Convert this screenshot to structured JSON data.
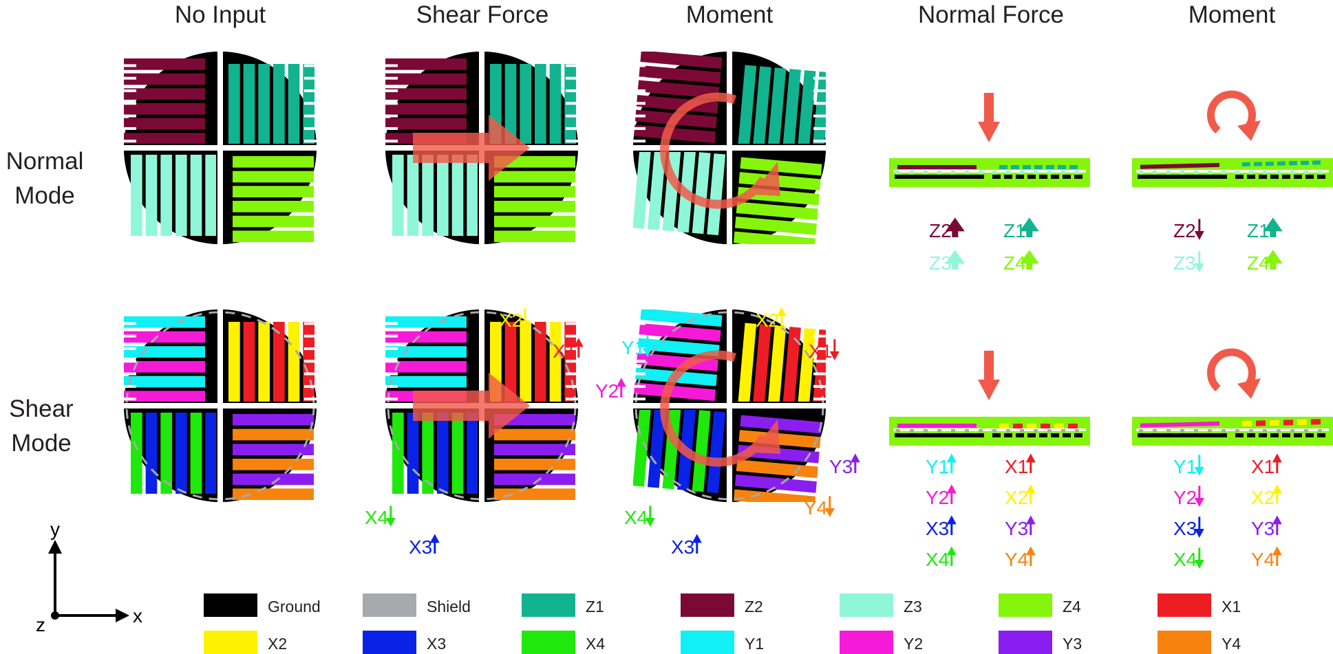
{
  "columns": [
    "No Input",
    "Shear Force",
    "Moment",
    "Normal Force",
    "Moment"
  ],
  "rows": [
    {
      "line1": "Normal",
      "line2": "Mode"
    },
    {
      "line1": "Shear",
      "line2": "Mode"
    }
  ],
  "colors": {
    "ground": "#000000",
    "shield": "#a7a9ac",
    "Z1": "#12b38f",
    "Z2": "#7a0a35",
    "Z3": "#8ff7d8",
    "Z4": "#86f50c",
    "X1": "#ee1c25",
    "X2": "#fff200",
    "X3": "#0a22e6",
    "X4": "#1fe80c",
    "Y1": "#10f0f5",
    "Y2": "#f51ad8",
    "Y3": "#8a1ef0",
    "Y4": "#f7830e",
    "force": "#f15a4a"
  },
  "labels_normal_force": [
    "Z2",
    "Z1",
    "Z3",
    "Z4"
  ],
  "labels_normal_moment": [
    "Z2",
    "Z1",
    "Z3",
    "Z4"
  ],
  "labels_shear_col_shear": [
    "X2",
    "X1",
    "X4",
    "X3"
  ],
  "labels_shear_col_moment": [
    "Y1",
    "X2",
    "X1",
    "Y2",
    "Y3",
    "Y4",
    "X4",
    "X3"
  ],
  "labels_shear_normal": [
    "Y1",
    "X1",
    "Y2",
    "X2",
    "X3",
    "Y3",
    "X4",
    "Y4"
  ],
  "labels_shear_moment": [
    "Y1",
    "X1",
    "Y2",
    "X2",
    "X3",
    "Y3",
    "X4",
    "Y4"
  ],
  "axes": {
    "y": "y",
    "x": "x",
    "z": "z"
  },
  "legend": [
    {
      "label": "Ground",
      "color": "#000000"
    },
    {
      "label": "Shield",
      "color": "#a7a9ac"
    },
    {
      "label": "Z1",
      "color": "#12b38f"
    },
    {
      "label": "Z2",
      "color": "#7a0a35"
    },
    {
      "label": "Z3",
      "color": "#8ff7d8"
    },
    {
      "label": "Z4",
      "color": "#86f50c"
    },
    {
      "label": "X1",
      "color": "#ee1c25"
    },
    {
      "label": "X2",
      "color": "#fff200"
    },
    {
      "label": "X3",
      "color": "#0a22e6"
    },
    {
      "label": "X4",
      "color": "#1fe80c"
    },
    {
      "label": "Y1",
      "color": "#10f0f5"
    },
    {
      "label": "Y2",
      "color": "#f51ad8"
    },
    {
      "label": "Y3",
      "color": "#8a1ef0"
    },
    {
      "label": "Y4",
      "color": "#f7830e"
    }
  ]
}
